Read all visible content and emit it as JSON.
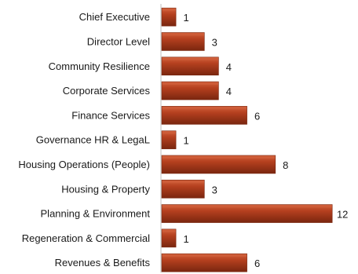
{
  "chart_data": {
    "type": "bar",
    "orientation": "horizontal",
    "categories": [
      "Chief Executive",
      "Director Level",
      "Community Resilience",
      "Corporate Services",
      "Finance Services",
      "Governance HR & LegaL",
      "Housing Operations (People)",
      "Housing & Property",
      "Planning & Environment",
      "Regeneration & Commercial",
      "Revenues & Benefits"
    ],
    "values": [
      1,
      3,
      4,
      4,
      6,
      1,
      8,
      3,
      12,
      1,
      6
    ],
    "data_labels": [
      "1",
      "3",
      "4",
      "4",
      "6",
      "1",
      "8",
      "3",
      "12",
      "1",
      "6"
    ],
    "title": "",
    "xlabel": "",
    "ylabel": "",
    "xlim": [
      0,
      12
    ],
    "grid": false,
    "legend": "none",
    "colors": {
      "bar": "#b5401f",
      "bar_dark": "#7a260f",
      "bar_light": "#d2613c",
      "axis": "#bfbfbf",
      "text": "#1a1a1a"
    }
  }
}
